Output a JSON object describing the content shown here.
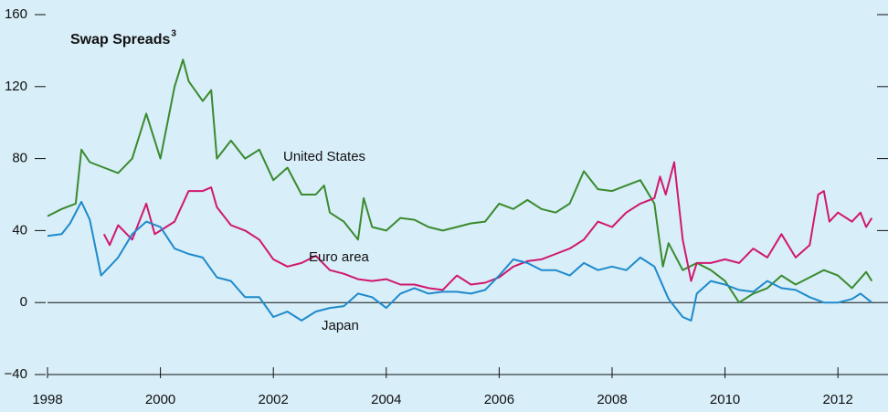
{
  "chart_data": {
    "type": "line",
    "title": "Swap Spreads",
    "title_footnote": "3",
    "xlim": [
      1998,
      2012.7
    ],
    "xticks": [
      1998,
      2000,
      2002,
      2004,
      2006,
      2008,
      2010,
      2012
    ],
    "ylim": [
      -40,
      160
    ],
    "yticks": [
      {
        "value": -40,
        "label": "−40"
      },
      0,
      40,
      80,
      120,
      160
    ],
    "grid": false,
    "series": [
      {
        "name": "United States",
        "color": "#3a8a2e",
        "x": [
          1998.0,
          1998.25,
          1998.5,
          1998.6,
          1998.75,
          1999.0,
          1999.25,
          1999.5,
          1999.75,
          2000.0,
          2000.25,
          2000.4,
          2000.5,
          2000.75,
          2000.9,
          2001.0,
          2001.25,
          2001.5,
          2001.75,
          2002.0,
          2002.25,
          2002.5,
          2002.75,
          2002.9,
          2003.0,
          2003.25,
          2003.5,
          2003.6,
          2003.75,
          2004.0,
          2004.25,
          2004.5,
          2004.75,
          2005.0,
          2005.25,
          2005.5,
          2005.75,
          2006.0,
          2006.25,
          2006.5,
          2006.75,
          2007.0,
          2007.25,
          2007.5,
          2007.75,
          2008.0,
          2008.25,
          2008.5,
          2008.75,
          2008.9,
          2009.0,
          2009.25,
          2009.5,
          2009.75,
          2010.0,
          2010.25,
          2010.5,
          2010.75,
          2011.0,
          2011.25,
          2011.5,
          2011.75,
          2012.0,
          2012.25,
          2012.5,
          2012.6
        ],
        "values": [
          48,
          52,
          55,
          85,
          78,
          75,
          72,
          80,
          105,
          80,
          120,
          135,
          123,
          112,
          118,
          80,
          90,
          80,
          85,
          68,
          75,
          60,
          60,
          65,
          50,
          45,
          35,
          58,
          42,
          40,
          47,
          46,
          42,
          40,
          42,
          44,
          45,
          55,
          52,
          57,
          52,
          50,
          55,
          73,
          63,
          62,
          65,
          68,
          55,
          20,
          33,
          18,
          22,
          18,
          12,
          0,
          5,
          8,
          15,
          10,
          14,
          18,
          15,
          8,
          17,
          12
        ]
      },
      {
        "name": "Euro area",
        "color": "#d0186e",
        "x": [
          1999.0,
          1999.1,
          1999.25,
          1999.5,
          1999.75,
          1999.9,
          2000.0,
          2000.25,
          2000.5,
          2000.75,
          2000.9,
          2001.0,
          2001.25,
          2001.5,
          2001.75,
          2002.0,
          2002.25,
          2002.5,
          2002.75,
          2003.0,
          2003.25,
          2003.5,
          2003.75,
          2004.0,
          2004.25,
          2004.5,
          2004.75,
          2005.0,
          2005.25,
          2005.5,
          2005.75,
          2006.0,
          2006.25,
          2006.5,
          2006.75,
          2007.0,
          2007.25,
          2007.5,
          2007.75,
          2008.0,
          2008.25,
          2008.5,
          2008.75,
          2008.85,
          2008.95,
          2009.1,
          2009.25,
          2009.4,
          2009.5,
          2009.75,
          2010.0,
          2010.25,
          2010.5,
          2010.75,
          2011.0,
          2011.25,
          2011.5,
          2011.65,
          2011.75,
          2011.85,
          2012.0,
          2012.25,
          2012.4,
          2012.5,
          2012.6
        ],
        "values": [
          38,
          32,
          43,
          35,
          55,
          38,
          40,
          45,
          62,
          62,
          64,
          53,
          43,
          40,
          35,
          24,
          20,
          22,
          26,
          18,
          16,
          13,
          12,
          13,
          10,
          10,
          8,
          7,
          15,
          10,
          11,
          14,
          20,
          23,
          24,
          27,
          30,
          35,
          45,
          42,
          50,
          55,
          58,
          70,
          60,
          78,
          35,
          12,
          22,
          22,
          24,
          22,
          30,
          25,
          38,
          25,
          32,
          60,
          62,
          45,
          50,
          45,
          50,
          42,
          47
        ]
      },
      {
        "name": "Japan",
        "color": "#1e8acb",
        "x": [
          1998.0,
          1998.25,
          1998.4,
          1998.6,
          1998.75,
          1998.95,
          1999.25,
          1999.5,
          1999.75,
          2000.0,
          2000.25,
          2000.5,
          2000.75,
          2001.0,
          2001.25,
          2001.5,
          2001.75,
          2002.0,
          2002.25,
          2002.5,
          2002.75,
          2003.0,
          2003.25,
          2003.5,
          2003.75,
          2004.0,
          2004.25,
          2004.5,
          2004.75,
          2005.0,
          2005.25,
          2005.5,
          2005.75,
          2006.0,
          2006.25,
          2006.5,
          2006.75,
          2007.0,
          2007.25,
          2007.5,
          2007.75,
          2008.0,
          2008.25,
          2008.5,
          2008.75,
          2009.0,
          2009.25,
          2009.4,
          2009.5,
          2009.75,
          2010.0,
          2010.25,
          2010.5,
          2010.75,
          2011.0,
          2011.25,
          2011.5,
          2011.75,
          2012.0,
          2012.25,
          2012.4,
          2012.6
        ],
        "values": [
          37,
          38,
          44,
          56,
          46,
          15,
          25,
          38,
          45,
          42,
          30,
          27,
          25,
          14,
          12,
          3,
          3,
          -8,
          -5,
          -10,
          -5,
          -3,
          -2,
          5,
          3,
          -3,
          5,
          8,
          5,
          6,
          6,
          5,
          7,
          15,
          24,
          22,
          18,
          18,
          15,
          22,
          18,
          20,
          18,
          25,
          20,
          2,
          -8,
          -10,
          5,
          12,
          10,
          7,
          6,
          12,
          8,
          7,
          3,
          0,
          0,
          2,
          5,
          0
        ]
      }
    ]
  }
}
